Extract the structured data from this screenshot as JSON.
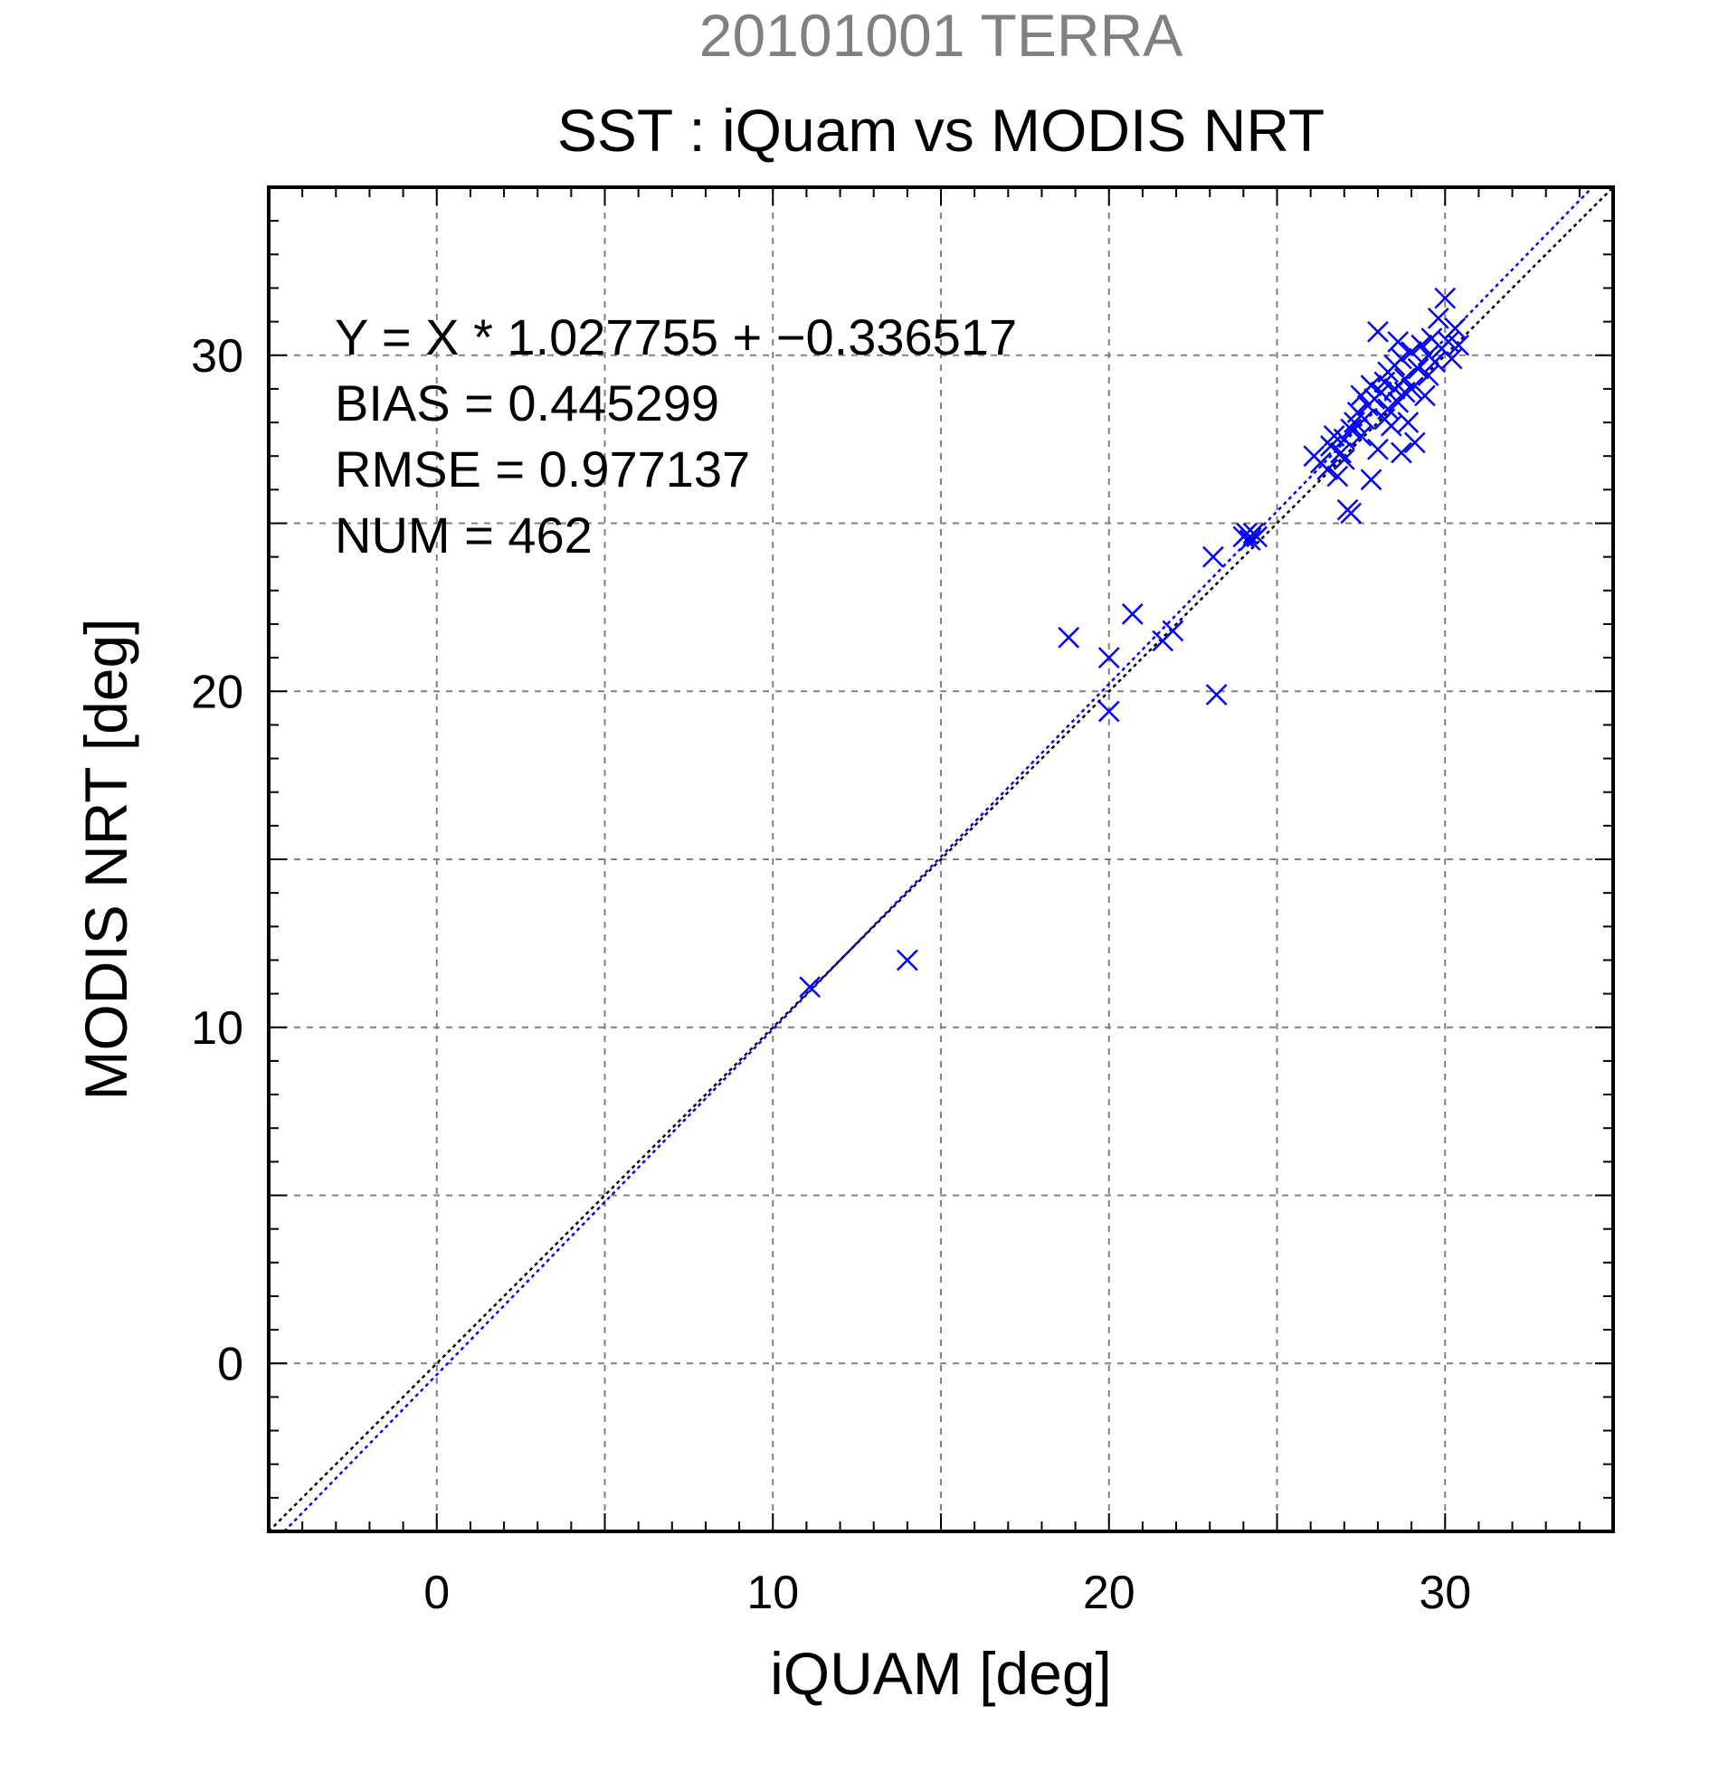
{
  "chart_data": {
    "type": "scatter",
    "title": "20101001 TERRA",
    "subtitle": "SST : iQuam vs MODIS NRT",
    "xlabel": "iQUAM [deg]",
    "ylabel": "MODIS NRT [deg]",
    "xlim": [
      -5,
      35
    ],
    "ylim": [
      -5,
      35
    ],
    "x_ticks": [
      0,
      10,
      20,
      30
    ],
    "y_ticks": [
      0,
      10,
      20,
      30
    ],
    "grid": true,
    "annotations": [
      "Y = X * 1.027755 + −0.336517",
      "BIAS = 0.445299",
      "RMSE = 0.977137",
      "NUM = 462"
    ],
    "regression": {
      "slope": 1.027755,
      "intercept": -0.336517,
      "color": "#0000ff"
    },
    "identity_line": {
      "slope": 1,
      "intercept": 0,
      "color": "#000000"
    },
    "marker_color": "#0000ff",
    "marker": "x",
    "points": [
      [
        11.1,
        11.2
      ],
      [
        14.0,
        12.0
      ],
      [
        18.8,
        21.6
      ],
      [
        20.0,
        21.0
      ],
      [
        20.0,
        19.4
      ],
      [
        20.7,
        22.3
      ],
      [
        21.6,
        21.5
      ],
      [
        21.9,
        21.8
      ],
      [
        23.1,
        24.0
      ],
      [
        23.2,
        19.9
      ],
      [
        24.0,
        24.6
      ],
      [
        24.1,
        24.7
      ],
      [
        24.2,
        24.5
      ],
      [
        24.3,
        24.7
      ],
      [
        24.4,
        24.6
      ],
      [
        26.1,
        27.0
      ],
      [
        26.3,
        26.8
      ],
      [
        26.5,
        26.6
      ],
      [
        26.6,
        27.3
      ],
      [
        26.8,
        26.4
      ],
      [
        26.9,
        27.1
      ],
      [
        27.0,
        27.5
      ],
      [
        27.1,
        25.4
      ],
      [
        27.2,
        25.3
      ],
      [
        27.2,
        27.8
      ],
      [
        27.3,
        28.0
      ],
      [
        27.4,
        28.3
      ],
      [
        27.5,
        27.6
      ],
      [
        27.6,
        28.1
      ],
      [
        27.7,
        28.5
      ],
      [
        27.8,
        26.3
      ],
      [
        27.9,
        28.7
      ],
      [
        28.0,
        30.7
      ],
      [
        28.0,
        27.2
      ],
      [
        28.1,
        28.9
      ],
      [
        28.2,
        29.2
      ],
      [
        28.3,
        28.4
      ],
      [
        28.3,
        29.5
      ],
      [
        28.4,
        27.9
      ],
      [
        28.5,
        29.0
      ],
      [
        28.5,
        29.7
      ],
      [
        28.6,
        28.6
      ],
      [
        28.7,
        27.1
      ],
      [
        28.7,
        29.9
      ],
      [
        28.8,
        29.3
      ],
      [
        28.9,
        28.0
      ],
      [
        29.0,
        30.1
      ],
      [
        29.0,
        29.0
      ],
      [
        29.1,
        27.4
      ],
      [
        29.2,
        29.6
      ],
      [
        29.3,
        30.3
      ],
      [
        29.4,
        28.8
      ],
      [
        29.5,
        30.0
      ],
      [
        29.6,
        30.5
      ],
      [
        29.7,
        29.8
      ],
      [
        29.8,
        31.1
      ],
      [
        29.9,
        30.2
      ],
      [
        30.0,
        31.7
      ],
      [
        30.1,
        30.4
      ],
      [
        30.2,
        29.9
      ],
      [
        30.3,
        30.8
      ],
      [
        30.4,
        30.3
      ],
      [
        27.0,
        26.9
      ],
      [
        26.7,
        27.6
      ],
      [
        27.5,
        28.8
      ],
      [
        28.2,
        28.1
      ],
      [
        28.8,
        28.9
      ],
      [
        29.5,
        29.4
      ],
      [
        27.8,
        29.1
      ],
      [
        28.6,
        30.4
      ]
    ]
  }
}
